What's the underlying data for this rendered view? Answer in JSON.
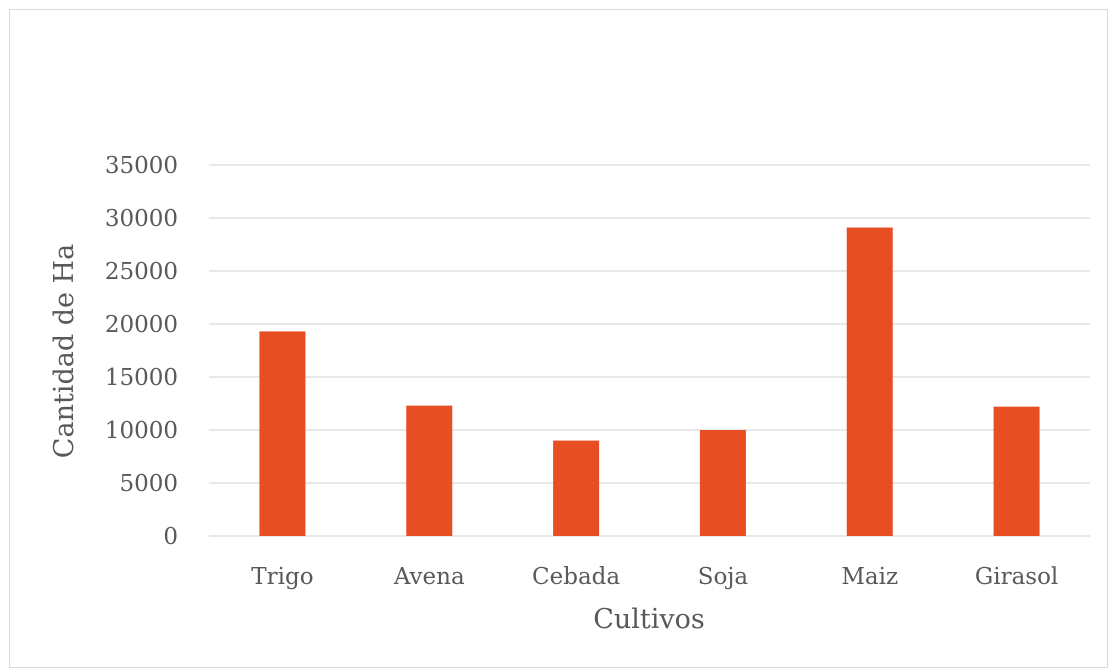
{
  "chart_data": {
    "type": "bar",
    "title": "",
    "xlabel": "Cultivos",
    "ylabel": "Cantidad de Ha",
    "categories": [
      "Trigo",
      "Avena",
      "Cebada",
      "Soja",
      "Maiz",
      "Girasol"
    ],
    "series": [
      {
        "values": [
          19300,
          12300,
          9000,
          10000,
          29100,
          12200
        ]
      }
    ],
    "ylim": [
      0,
      35000
    ],
    "yticks": [
      "0",
      "5000",
      "10000",
      "15000",
      "20000",
      "25000",
      "30000",
      "35000"
    ],
    "grid": true,
    "legend": "none",
    "bar_color": "#e84e23"
  }
}
